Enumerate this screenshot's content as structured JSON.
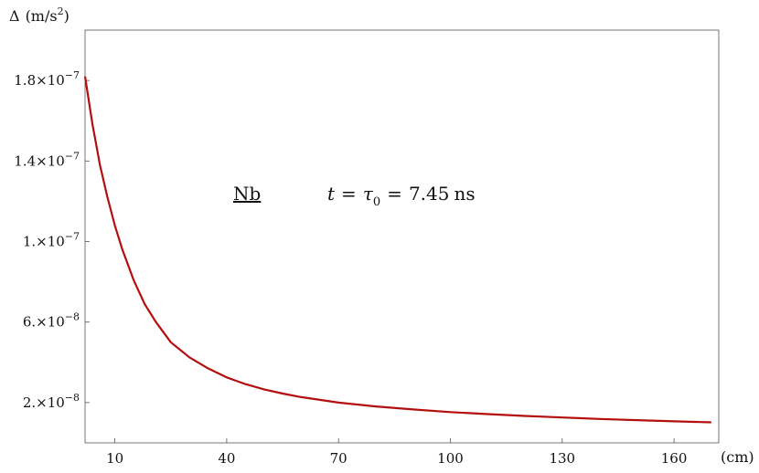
{
  "chart_data": {
    "type": "line",
    "ylabel_symbol": "Δ",
    "ylabel_unit_base": "(m/s",
    "ylabel_unit_exp": "2",
    "ylabel_unit_close": ")",
    "xlabel": "(cm)",
    "xlim": [
      2,
      172
    ],
    "ylim": [
      0.0,
      2.05e-07
    ],
    "x_ticks": [
      {
        "value": 10,
        "label": "10"
      },
      {
        "value": 40,
        "label": "40"
      },
      {
        "value": 70,
        "label": "70"
      },
      {
        "value": 100,
        "label": "100"
      },
      {
        "value": 130,
        "label": "130"
      },
      {
        "value": 160,
        "label": "160"
      }
    ],
    "y_ticks": [
      {
        "value": 1.8e-07,
        "mant": "1.8",
        "exp": "−7"
      },
      {
        "value": 1.4e-07,
        "mant": "1.4",
        "exp": "−7"
      },
      {
        "value": 1e-07,
        "mant": "1.",
        "exp": "−7"
      },
      {
        "value": 6e-08,
        "mant": "6.",
        "exp": "−8"
      },
      {
        "value": 2e-08,
        "mant": "2.",
        "exp": "−8"
      }
    ],
    "grid": false,
    "series": [
      {
        "color": "#b30f0f",
        "x": [
          2,
          4,
          6,
          8,
          10,
          12,
          15,
          18,
          21,
          25,
          30,
          35,
          40,
          45,
          50,
          55,
          60,
          70,
          80,
          90,
          100,
          110,
          120,
          130,
          140,
          150,
          160,
          170
        ],
        "y": [
          1.82e-07,
          1.58e-07,
          1.38e-07,
          1.22e-07,
          1.08e-07,
          9.6e-08,
          8.1e-08,
          6.9e-08,
          6e-08,
          5e-08,
          4.25e-08,
          3.7e-08,
          3.25e-08,
          2.92e-08,
          2.66e-08,
          2.45e-08,
          2.27e-08,
          2e-08,
          1.81e-08,
          1.66e-08,
          1.53e-08,
          1.43e-08,
          1.34e-08,
          1.26e-08,
          1.19e-08,
          1.13e-08,
          1.07e-08,
          1.02e-08
        ]
      }
    ],
    "annotation_material": "Nb",
    "annotation_formula_t": "t",
    "annotation_formula_eq1": "=",
    "annotation_formula_tau": "τ",
    "annotation_formula_sub": "0",
    "annotation_formula_eq2": "=",
    "annotation_formula_val": "7.45",
    "annotation_formula_unit": "ns"
  }
}
